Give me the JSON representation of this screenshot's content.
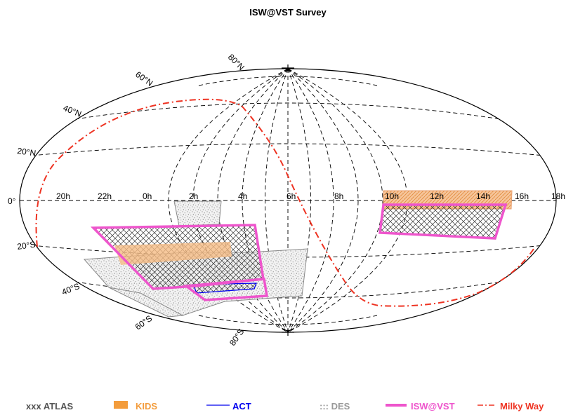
{
  "chart_data": {
    "type": "sky-map",
    "projection": "Aitoff (equatorial, RA/Dec)",
    "title": "ISW@VST Survey",
    "ra_ticks": [
      "20h",
      "22h",
      "0h",
      "2h",
      "4h",
      "6h",
      "8h",
      "10h",
      "12h",
      "14h",
      "16h",
      "18h"
    ],
    "dec_ticks": [
      "80°N",
      "60°N",
      "40°N",
      "20°N",
      "0°",
      "20°S",
      "40°S",
      "60°S",
      "80°S"
    ],
    "grid": true,
    "legend_position": "bottom",
    "legend": [
      {
        "key": "atlas",
        "text": "xxx ATLAS",
        "color": "#555555",
        "marker": "none"
      },
      {
        "key": "kids",
        "text": "KIDS",
        "color": "#f39c3c",
        "marker": "block"
      },
      {
        "key": "act",
        "text": "ACT",
        "color": "#0000ee",
        "marker": "line"
      },
      {
        "key": "des",
        "text": "::: DES",
        "color": "#999999",
        "marker": "none"
      },
      {
        "key": "isw",
        "text": "ISW@VST",
        "color": "#ee55cc",
        "marker": "thick-line"
      },
      {
        "key": "mw",
        "text": "Milky Way",
        "color": "#ee3322",
        "marker": "dash-dot"
      }
    ],
    "regions": [
      {
        "survey": "DES",
        "ra_range_hours": [
          20,
          5.5
        ],
        "dec_range_deg": [
          -60,
          0
        ]
      },
      {
        "survey": "KIDS",
        "ra_range_hours": [
          10,
          16
        ],
        "dec_range_deg": [
          -5,
          5
        ]
      },
      {
        "survey": "KIDS",
        "ra_range_hours": [
          22,
          3.5
        ],
        "dec_range_deg": [
          -35,
          -28
        ]
      },
      {
        "survey": "ATLAS",
        "ra_range_hours": [
          10,
          15.5
        ],
        "dec_range_deg": [
          -20,
          -5
        ]
      },
      {
        "survey": "ATLAS",
        "ra_range_hours": [
          21,
          4
        ],
        "dec_range_deg": [
          -40,
          -10
        ]
      },
      {
        "survey": "ISW@VST",
        "ra_range_hours": [
          10,
          15.5
        ],
        "dec_range_deg": [
          -20,
          0
        ]
      },
      {
        "survey": "ISW@VST",
        "ra_range_hours": [
          21,
          4
        ],
        "dec_range_deg": [
          -40,
          -10
        ]
      },
      {
        "survey": "ISW@VST",
        "ra_range_hours": [
          1,
          4.5
        ],
        "dec_range_deg": [
          -55,
          -40
        ]
      },
      {
        "survey": "ACT",
        "ra_range_hours": [
          1,
          4
        ],
        "dec_range_deg": [
          -55,
          -50
        ]
      }
    ]
  },
  "colors": {
    "kids": "#f39c3c",
    "act": "#0000ee",
    "des": "#999999",
    "isw": "#ee55cc",
    "mw": "#ee3322",
    "atlas": "#555555"
  }
}
